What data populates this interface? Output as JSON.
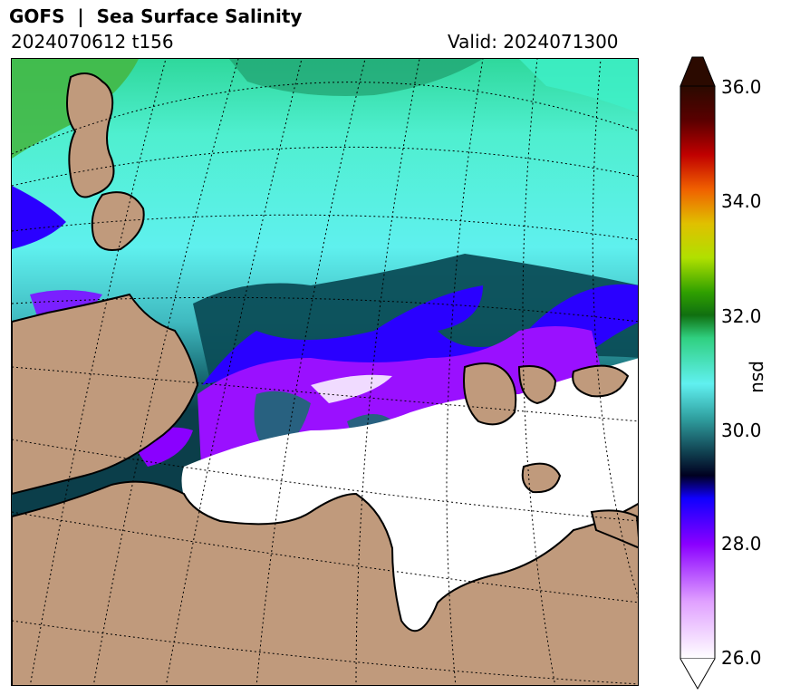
{
  "header": {
    "title": "GOFS  |  Sea Surface Salinity",
    "run": "2024070612 t156",
    "valid": "Valid: 2024071300"
  },
  "colorbar": {
    "ticks": [
      "36.0",
      "34.0",
      "32.0",
      "30.0",
      "28.0",
      "26.0"
    ],
    "unit": "psu",
    "range": [
      26.0,
      36.0
    ],
    "extend": "both"
  },
  "colors": {
    "land": "#c09a7c",
    "ice_fresh": "#ffffff",
    "water_low": "#8a00ff",
    "water_28": "#1a00ff",
    "water_29": "#0d4a5a",
    "water_30": "#3ecfcf",
    "water_31": "#34e3a8"
  }
}
